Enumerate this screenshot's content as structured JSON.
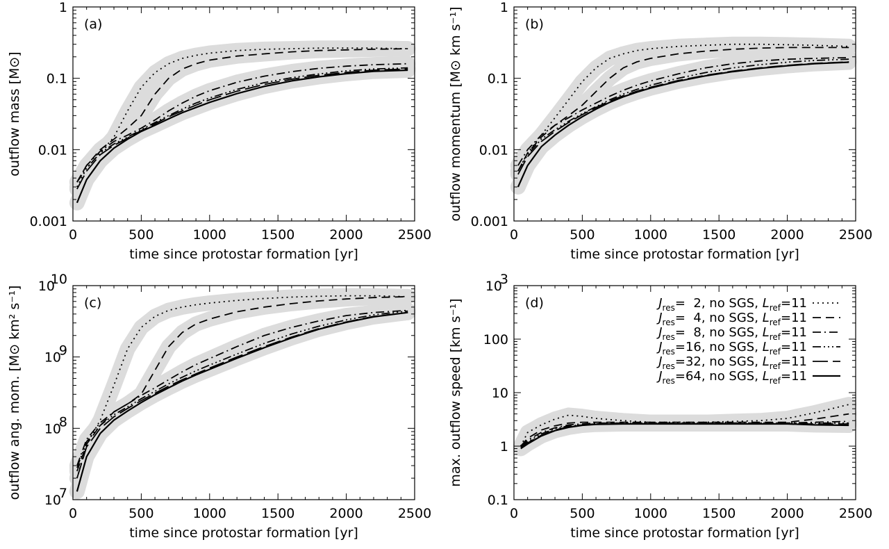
{
  "figure": {
    "xlabel": "time since protostar formation [yr]"
  },
  "legend": {
    "entries": [
      {
        "J": "2",
        "dash": "dotted"
      },
      {
        "J": "4",
        "dash": "dashed"
      },
      {
        "J": "8",
        "dash": "dashdot"
      },
      {
        "J": "16",
        "dash": "dashdotdotdot"
      },
      {
        "J": "32",
        "dash": "longdash"
      },
      {
        "J": "64",
        "dash": "solid"
      }
    ],
    "text_mid": ", no SGS, ",
    "text_end": "=11"
  },
  "chart_data": [
    {
      "type": "line",
      "panel": "(a)",
      "xlabel": "time since protostar formation [yr]",
      "ylabel": "outflow mass [M⊙]",
      "xlim": [
        0,
        2500
      ],
      "ylim": [
        0.001,
        1
      ],
      "yscale": "log",
      "xticks": [
        "0",
        "500",
        "1000",
        "1500",
        "2000",
        "2500"
      ],
      "yticks": [
        {
          "v": 0.001,
          "t": "0.001"
        },
        {
          "v": 0.01,
          "t": "0.01"
        },
        {
          "v": 0.1,
          "t": "0.1"
        },
        {
          "v": 1,
          "t": "1"
        }
      ],
      "x": [
        30,
        100,
        200,
        300,
        400,
        500,
        600,
        700,
        800,
        900,
        1000,
        1200,
        1400,
        1600,
        1800,
        2000,
        2200,
        2450
      ],
      "series": [
        {
          "J": "2",
          "values": [
            0.003,
            0.0055,
            0.009,
            0.015,
            0.035,
            0.075,
            0.12,
            0.16,
            0.19,
            0.21,
            0.225,
            0.245,
            0.255,
            0.26,
            0.265,
            0.265,
            0.265,
            0.26
          ]
        },
        {
          "J": "4",
          "values": [
            0.0035,
            0.006,
            0.01,
            0.014,
            0.02,
            0.03,
            0.06,
            0.1,
            0.135,
            0.16,
            0.18,
            0.205,
            0.22,
            0.235,
            0.245,
            0.25,
            0.255,
            0.26
          ]
        },
        {
          "J": "8",
          "values": [
            0.0035,
            0.006,
            0.0095,
            0.013,
            0.016,
            0.02,
            0.026,
            0.035,
            0.045,
            0.056,
            0.067,
            0.088,
            0.107,
            0.124,
            0.138,
            0.148,
            0.155,
            0.16
          ]
        },
        {
          "J": "16",
          "values": [
            0.0035,
            0.0055,
            0.009,
            0.012,
            0.015,
            0.019,
            0.024,
            0.03,
            0.037,
            0.045,
            0.053,
            0.07,
            0.087,
            0.102,
            0.115,
            0.127,
            0.135,
            0.14
          ]
        },
        {
          "J": "32",
          "values": [
            0.0028,
            0.005,
            0.0085,
            0.0115,
            0.0145,
            0.0185,
            0.023,
            0.029,
            0.035,
            0.042,
            0.05,
            0.066,
            0.082,
            0.097,
            0.11,
            0.121,
            0.13,
            0.135
          ]
        },
        {
          "J": "64",
          "values": [
            0.0018,
            0.0038,
            0.007,
            0.0105,
            0.014,
            0.018,
            0.022,
            0.027,
            0.033,
            0.039,
            0.046,
            0.061,
            0.077,
            0.092,
            0.105,
            0.116,
            0.125,
            0.13
          ]
        }
      ]
    },
    {
      "type": "line",
      "panel": "(b)",
      "xlabel": "time since protostar formation [yr]",
      "ylabel": "outflow momentum [M⊙ km s⁻¹]",
      "xlim": [
        0,
        2500
      ],
      "ylim": [
        0.001,
        1
      ],
      "yscale": "log",
      "xticks": [
        "0",
        "500",
        "1000",
        "1500",
        "2000",
        "2500"
      ],
      "yticks": [
        {
          "v": 0.001,
          "t": "0.001"
        },
        {
          "v": 0.01,
          "t": "0.01"
        },
        {
          "v": 0.1,
          "t": "0.1"
        },
        {
          "v": 1,
          "t": "1"
        }
      ],
      "x": [
        30,
        100,
        200,
        300,
        400,
        500,
        600,
        700,
        800,
        900,
        1000,
        1200,
        1400,
        1600,
        1800,
        2000,
        2200,
        2450
      ],
      "series": [
        {
          "J": "2",
          "values": [
            0.005,
            0.009,
            0.016,
            0.028,
            0.05,
            0.09,
            0.14,
            0.19,
            0.22,
            0.245,
            0.26,
            0.28,
            0.29,
            0.3,
            0.3,
            0.295,
            0.29,
            0.28
          ]
        },
        {
          "J": "4",
          "values": [
            0.005,
            0.009,
            0.015,
            0.022,
            0.03,
            0.042,
            0.065,
            0.1,
            0.14,
            0.17,
            0.19,
            0.22,
            0.24,
            0.255,
            0.265,
            0.27,
            0.27,
            0.27
          ]
        },
        {
          "J": "8",
          "values": [
            0.006,
            0.01,
            0.016,
            0.022,
            0.028,
            0.036,
            0.045,
            0.056,
            0.068,
            0.08,
            0.092,
            0.115,
            0.14,
            0.16,
            0.175,
            0.185,
            0.19,
            0.195
          ]
        },
        {
          "J": "16",
          "values": [
            0.005,
            0.0085,
            0.014,
            0.019,
            0.025,
            0.032,
            0.04,
            0.05,
            0.06,
            0.07,
            0.08,
            0.1,
            0.12,
            0.14,
            0.155,
            0.168,
            0.178,
            0.185
          ]
        },
        {
          "J": "32",
          "values": [
            0.0045,
            0.008,
            0.013,
            0.018,
            0.024,
            0.031,
            0.039,
            0.048,
            0.057,
            0.066,
            0.075,
            0.093,
            0.11,
            0.126,
            0.14,
            0.152,
            0.162,
            0.17
          ]
        },
        {
          "J": "64",
          "values": [
            0.003,
            0.006,
            0.011,
            0.016,
            0.022,
            0.029,
            0.037,
            0.046,
            0.055,
            0.064,
            0.073,
            0.091,
            0.108,
            0.124,
            0.138,
            0.15,
            0.16,
            0.168
          ]
        }
      ]
    },
    {
      "type": "line",
      "panel": "(c)",
      "xlabel": "time since protostar formation [yr]",
      "ylabel": "outflow ang. mom. [M⊙ km² s⁻¹]",
      "xlim": [
        0,
        2500
      ],
      "ylim": [
        10000000,
        10000000000
      ],
      "yscale": "log",
      "xticks": [
        "0",
        "500",
        "1000",
        "1500",
        "2000",
        "2500"
      ],
      "yticks": [
        {
          "v": 10000000,
          "t": "10",
          "exp": "7"
        },
        {
          "v": 100000000,
          "t": "10",
          "exp": "8"
        },
        {
          "v": 1000000000,
          "t": "10",
          "exp": "9"
        },
        {
          "v": 10000000000,
          "t": "10",
          "exp": "10"
        }
      ],
      "x": [
        30,
        100,
        200,
        300,
        400,
        500,
        600,
        700,
        800,
        900,
        1000,
        1200,
        1400,
        1600,
        1800,
        2000,
        2200,
        2450
      ],
      "series": [
        {
          "J": "2",
          "values": [
            20000000,
            60000000,
            130000000,
            400000000,
            1300000000,
            2600000000,
            3700000000,
            4500000000,
            5000000000,
            5400000000,
            5700000000,
            6200000000,
            6600000000,
            6900000000,
            7100000000,
            7200000000,
            7200000000,
            7000000000
          ]
        },
        {
          "J": "4",
          "values": [
            25000000,
            60000000,
            110000000,
            170000000,
            220000000,
            300000000,
            650000000,
            1400000000,
            2200000000,
            2900000000,
            3400000000,
            4300000000,
            5000000000,
            5600000000,
            6100000000,
            6500000000,
            6800000000,
            7000000000
          ]
        },
        {
          "J": "8",
          "values": [
            30000000,
            70000000,
            120000000,
            170000000,
            220000000,
            290000000,
            370000000,
            480000000,
            620000000,
            780000000,
            950000000,
            1400000000,
            2000000000,
            2600000000,
            3200000000,
            3800000000,
            4200000000,
            4500000000
          ]
        },
        {
          "J": "16",
          "values": [
            28000000,
            65000000,
            110000000,
            155000000,
            200000000,
            260000000,
            330000000,
            420000000,
            520000000,
            640000000,
            770000000,
            1100000000,
            1550000000,
            2100000000,
            2700000000,
            3300000000,
            3900000000,
            4400000000
          ]
        },
        {
          "J": "32",
          "values": [
            20000000,
            55000000,
            100000000,
            145000000,
            190000000,
            245000000,
            310000000,
            390000000,
            480000000,
            580000000,
            700000000,
            1000000000,
            1400000000,
            1900000000,
            2500000000,
            3100000000,
            3700000000,
            4200000000
          ]
        },
        {
          "J": "64",
          "values": [
            13000000,
            40000000,
            85000000,
            130000000,
            175000000,
            230000000,
            295000000,
            370000000,
            460000000,
            560000000,
            670000000,
            960000000,
            1350000000,
            1850000000,
            2450000000,
            3050000000,
            3650000000,
            4200000000
          ]
        }
      ]
    },
    {
      "type": "line",
      "panel": "(d)",
      "xlabel": "time since protostar formation [yr]",
      "ylabel": "max. outflow speed [km s⁻¹]",
      "xlim": [
        0,
        2500
      ],
      "ylim": [
        0.1,
        1000
      ],
      "yscale": "log",
      "xticks": [
        "0",
        "500",
        "1000",
        "1500",
        "2000",
        "2500"
      ],
      "yticks": [
        {
          "v": 0.1,
          "t": "0.1"
        },
        {
          "v": 1,
          "t": "1"
        },
        {
          "v": 10,
          "t": "10"
        },
        {
          "v": 100,
          "t": "100"
        },
        {
          "v": 1000,
          "t": "10",
          "exp": "3"
        }
      ],
      "x": [
        50,
        100,
        200,
        300,
        400,
        500,
        600,
        800,
        1000,
        1200,
        1400,
        1600,
        1800,
        2000,
        2200,
        2450
      ],
      "series": [
        {
          "J": "2",
          "values": [
            1.0,
            1.8,
            2.5,
            3.2,
            3.8,
            3.6,
            3.3,
            3.0,
            2.8,
            2.8,
            2.8,
            2.9,
            3.0,
            3.3,
            4.2,
            6.0
          ]
        },
        {
          "J": "4",
          "values": [
            1.0,
            1.4,
            2.0,
            2.4,
            2.7,
            2.8,
            2.8,
            2.8,
            2.8,
            2.8,
            2.8,
            2.8,
            2.8,
            2.8,
            3.2,
            4.0
          ]
        },
        {
          "J": "8",
          "values": [
            1.0,
            1.3,
            1.8,
            2.2,
            2.5,
            2.6,
            2.7,
            2.7,
            2.7,
            2.7,
            2.7,
            2.7,
            2.7,
            2.7,
            2.8,
            2.9
          ]
        },
        {
          "J": "16",
          "values": [
            1.0,
            1.2,
            1.7,
            2.1,
            2.4,
            2.5,
            2.6,
            2.7,
            2.7,
            2.7,
            2.7,
            2.7,
            2.7,
            2.7,
            2.7,
            2.7
          ]
        },
        {
          "J": "32",
          "values": [
            0.95,
            1.15,
            1.6,
            2.0,
            2.3,
            2.5,
            2.6,
            2.6,
            2.6,
            2.6,
            2.6,
            2.6,
            2.6,
            2.6,
            2.6,
            2.6
          ]
        },
        {
          "J": "64",
          "values": [
            0.9,
            1.1,
            1.55,
            1.95,
            2.25,
            2.45,
            2.55,
            2.6,
            2.6,
            2.6,
            2.6,
            2.6,
            2.6,
            2.6,
            2.5,
            2.45
          ]
        }
      ]
    }
  ]
}
